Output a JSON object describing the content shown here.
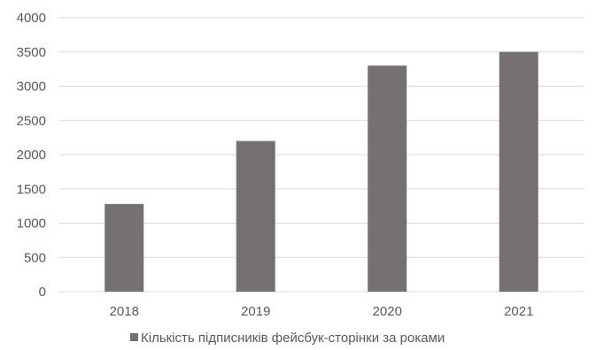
{
  "chart_data": {
    "type": "bar",
    "categories": [
      "2018",
      "2019",
      "2020",
      "2021"
    ],
    "series": [
      {
        "name": "Кількість підписників фейсбук-сторінки за роками",
        "values": [
          1280,
          2200,
          3300,
          3500
        ],
        "color": "#767171"
      }
    ],
    "ylim": [
      0,
      4000
    ],
    "yticks": [
      "0",
      "500",
      "1000",
      "1500",
      "2000",
      "2500",
      "3000",
      "3500",
      "4000"
    ],
    "grid": true,
    "legend": "bottom",
    "colors": {
      "gridline": "#d9d9d9",
      "axis": "#d9d9d9",
      "text": "#595959"
    }
  }
}
